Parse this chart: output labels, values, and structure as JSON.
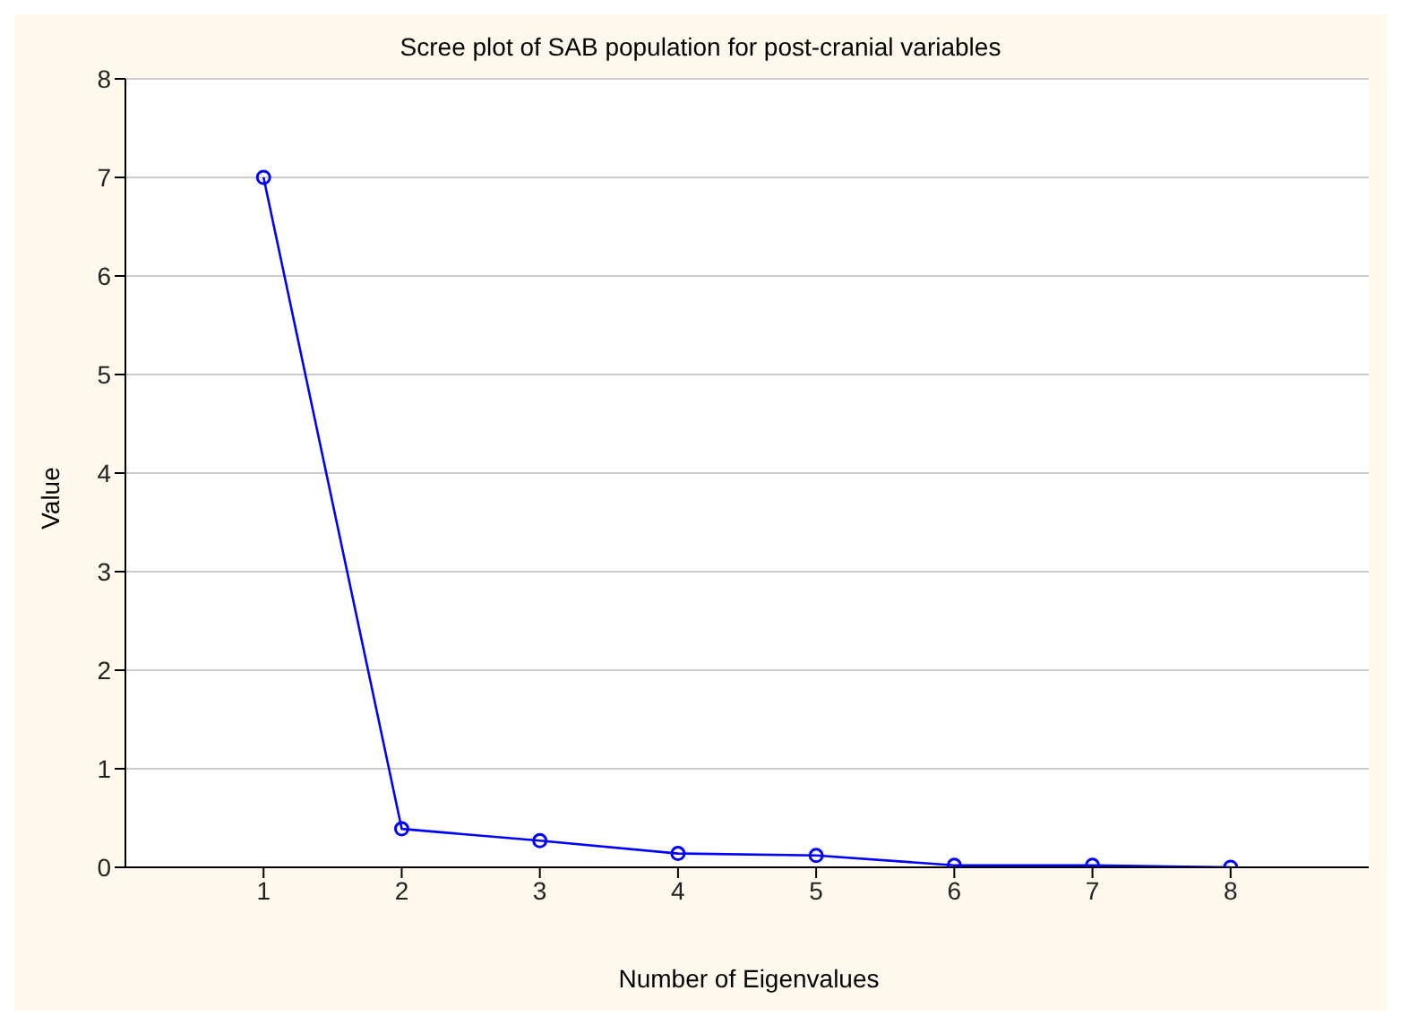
{
  "chart_data": {
    "type": "line",
    "title": "Scree plot of SAB population for post-cranial variables",
    "xlabel": "Number of Eigenvalues",
    "ylabel": "Value",
    "x": [
      1,
      2,
      3,
      4,
      5,
      6,
      7,
      8
    ],
    "series": [
      {
        "color": "#0000ff",
        "values": [
          7.0,
          0.39,
          0.27,
          0.14,
          0.12,
          0.02,
          0.02,
          0.0
        ]
      }
    ],
    "xlim": [
      0,
      9
    ],
    "xticks": [
      1,
      2,
      3,
      4,
      5,
      6,
      7,
      8
    ],
    "ylim": [
      0,
      8
    ],
    "yticks": [
      0,
      1,
      2,
      3,
      4,
      5,
      6,
      7,
      8
    ],
    "grid": "y",
    "marker": "circle",
    "line_style": "solid",
    "legend": false
  }
}
